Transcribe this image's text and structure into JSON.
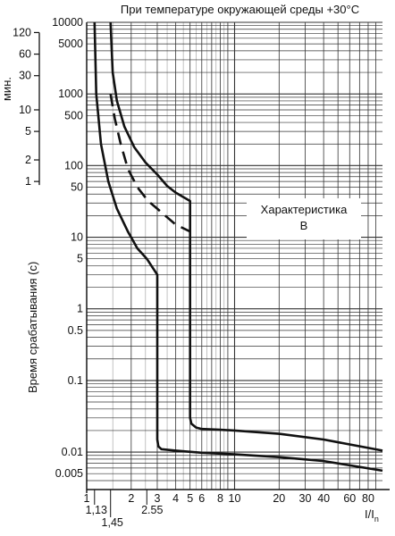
{
  "title": "При температуре окружающей среды +30°С",
  "ylabel": "Время срабатывания (с)",
  "minutes_label": "мин.",
  "xlabel_main": "I/I",
  "xlabel_sub": "n",
  "characteristic": {
    "line1": "Характеристика",
    "line2": "В"
  },
  "chart_data": {
    "type": "line",
    "title": "При температуре окружающей среды +30°С",
    "ylabel": "Время срабатывания (с)",
    "xlabel": "I/In",
    "x_scale": "log",
    "y_scale": "log",
    "xlim": [
      1,
      100
    ],
    "ylim": [
      0.003,
      10000
    ],
    "grid": true,
    "x_ticks": [
      "1",
      "2",
      "3",
      "4",
      "5",
      "6",
      "8",
      "10",
      "20",
      "30",
      "40",
      "60",
      "80"
    ],
    "x_tick_values": [
      1,
      2,
      3,
      4,
      5,
      6,
      8,
      10,
      20,
      30,
      40,
      60,
      80
    ],
    "x_extra_ticks": [
      "1,13",
      "1,45",
      "2.55"
    ],
    "x_extra_tick_values": [
      1.13,
      1.45,
      2.55
    ],
    "y_ticks": [
      "10000",
      "5000",
      "1000",
      "500",
      "100",
      "50",
      "10",
      "5",
      "1",
      "0.5",
      "0.1",
      "0.01",
      "0.005"
    ],
    "y_tick_values": [
      10000,
      5000,
      1000,
      500,
      100,
      50,
      10,
      5,
      1,
      0.5,
      0.1,
      0.01,
      0.005
    ],
    "minutes_ticks": [
      "120",
      "60",
      "30",
      "10",
      "5",
      "2",
      "1"
    ],
    "minutes_tick_values": [
      120,
      60,
      30,
      10,
      5,
      2,
      1
    ],
    "series": [
      {
        "style": "solid",
        "x": [
          1.13,
          1.16,
          1.25,
          1.4,
          1.6,
          1.9,
          2.2,
          2.55,
          3.0,
          3.0,
          3.05,
          3.2,
          4.0,
          6.0,
          10,
          20,
          40,
          100
        ],
        "y": [
          10000,
          1000,
          200,
          60,
          25,
          12,
          7,
          5,
          3,
          0.015,
          0.012,
          0.011,
          0.0105,
          0.0098,
          0.0093,
          0.0085,
          0.0075,
          0.0055
        ]
      },
      {
        "style": "solid",
        "x": [
          1.45,
          1.5,
          1.6,
          1.8,
          2.1,
          2.5,
          3.0,
          3.5,
          4.0,
          5.0,
          5.0,
          5.1,
          5.5,
          6.0,
          8.0,
          10,
          20,
          40,
          100
        ],
        "y": [
          10000,
          2000,
          800,
          350,
          180,
          110,
          75,
          52,
          42,
          32,
          0.03,
          0.025,
          0.022,
          0.021,
          0.0205,
          0.02,
          0.018,
          0.015,
          0.0105
        ]
      },
      {
        "style": "dashed",
        "x": [
          1.45,
          1.55,
          1.7,
          1.9,
          2.2,
          2.6,
          3.0,
          3.5,
          4.0,
          5.0
        ],
        "y": [
          1000,
          450,
          200,
          90,
          50,
          32,
          25,
          19,
          15,
          12
        ]
      }
    ]
  }
}
